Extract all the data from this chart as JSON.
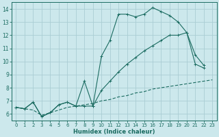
{
  "xlabel": "Humidex (Indice chaleur)",
  "bg_color": "#cce8ec",
  "grid_color": "#aacdd4",
  "line_color": "#1a6b60",
  "xlim": [
    -0.5,
    23.5
  ],
  "ylim": [
    5.5,
    14.5
  ],
  "xticks": [
    0,
    1,
    2,
    3,
    4,
    5,
    6,
    7,
    8,
    9,
    10,
    11,
    12,
    13,
    14,
    15,
    16,
    17,
    18,
    19,
    20,
    21,
    22,
    23
  ],
  "yticks": [
    6,
    7,
    8,
    9,
    10,
    11,
    12,
    13,
    14
  ],
  "line1_x": [
    0,
    1,
    2,
    3,
    4,
    5,
    6,
    7,
    8,
    9,
    10,
    11,
    12,
    13,
    14,
    15,
    16,
    17,
    18,
    19,
    20,
    21,
    22
  ],
  "line1_y": [
    6.5,
    6.4,
    6.9,
    5.8,
    6.1,
    6.7,
    6.9,
    6.6,
    8.5,
    6.6,
    10.4,
    11.6,
    13.6,
    13.6,
    13.4,
    13.6,
    14.1,
    13.8,
    13.5,
    13.0,
    12.2,
    10.5,
    9.7
  ],
  "line2_x": [
    0,
    1,
    2,
    3,
    4,
    5,
    6,
    7,
    8,
    9,
    10,
    11,
    12,
    13,
    14,
    15,
    16,
    17,
    18,
    19,
    20,
    21,
    22
  ],
  "line2_y": [
    6.5,
    6.4,
    6.9,
    5.8,
    6.1,
    6.7,
    6.9,
    6.6,
    6.6,
    6.6,
    7.8,
    8.5,
    9.2,
    9.8,
    10.3,
    10.8,
    11.2,
    11.6,
    12.0,
    12.0,
    12.2,
    9.8,
    9.5
  ],
  "line3_x": [
    0,
    1,
    2,
    3,
    4,
    5,
    6,
    7,
    8,
    9,
    10,
    11,
    12,
    13,
    14,
    15,
    16,
    17,
    18,
    19,
    20,
    21,
    22,
    23
  ],
  "line3_y": [
    6.5,
    6.4,
    6.3,
    5.9,
    6.1,
    6.3,
    6.5,
    6.6,
    6.7,
    6.8,
    7.0,
    7.1,
    7.3,
    7.4,
    7.6,
    7.7,
    7.9,
    8.0,
    8.1,
    8.2,
    8.3,
    8.4,
    8.5,
    8.6
  ]
}
